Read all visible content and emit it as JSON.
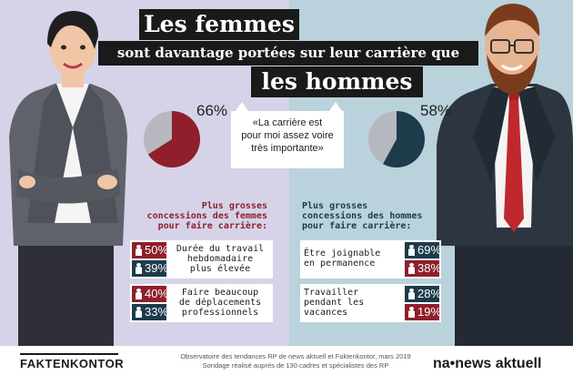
{
  "title": {
    "line1": "Les femmes",
    "line2": "sont davantage portées sur leur carrière que",
    "line3": "les hommes"
  },
  "women": {
    "percent": "66%",
    "pie_value": 0.66,
    "subtitle": [
      "Plus grosses",
      "concessions des femmes",
      "pour faire carrière:"
    ]
  },
  "men": {
    "percent": "58%",
    "pie_value": 0.58,
    "subtitle": [
      "Plus grosses",
      "concessions des hommes",
      "pour faire carrière:"
    ]
  },
  "quote": [
    "«La carrière est",
    "pour moi assez voire",
    "très importante»"
  ],
  "left_cards": [
    {
      "label": [
        "Durée du travail",
        "hebdomadaire",
        "plus élevée"
      ],
      "women": "50%",
      "men": "39%"
    },
    {
      "label": [
        "Faire beaucoup",
        "de déplacements",
        "professionnels"
      ],
      "women": "40%",
      "men": "33%"
    }
  ],
  "right_cards": [
    {
      "label": [
        "Être joignable",
        "en permanence"
      ],
      "men": "69%",
      "women": "38%"
    },
    {
      "label": [
        "Travailler",
        "pendant les",
        "vacances"
      ],
      "men": "28%",
      "women": "19%"
    }
  ],
  "footer": {
    "left_logo": "FAKTENKONTOR",
    "source_line1": "Observatoire des tendances RP de news aktuell et Faktenkontor, mars 2019",
    "source_line2": "Sondage réalisé auprès de 130 cadres et spécialistes des RP",
    "right_logo": "na•news aktuell"
  },
  "colors": {
    "left_bg": "#d6d3e8",
    "right_bg": "#b9d2dc",
    "women_red": "#8e1f2b",
    "men_teal": "#1e3b4b",
    "pie_grey": "#b7b7c0"
  }
}
